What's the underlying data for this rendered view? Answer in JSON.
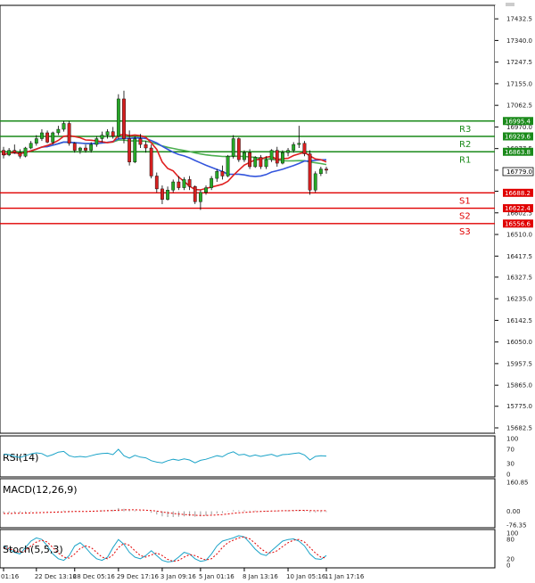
{
  "chart_data": {
    "type": "candlestick",
    "main": {
      "price_ticks": [
        "17432.5",
        "17340.0",
        "17247.5",
        "17155.0",
        "17062.5",
        "16970.0",
        "16877.5",
        "16785.0",
        "16695.0",
        "16602.5",
        "16510.0",
        "16417.5",
        "16327.5",
        "16235.0",
        "16142.5",
        "16050.0",
        "15957.5",
        "15865.0",
        "15775.0",
        "15682.5"
      ],
      "price_tick_values": [
        17432.5,
        17340.0,
        17247.5,
        17155.0,
        17062.5,
        16970.0,
        16877.5,
        16785.0,
        16695.0,
        16602.5,
        16510.0,
        16417.5,
        16327.5,
        16235.0,
        16142.5,
        16050.0,
        15957.5,
        15865.0,
        15775.0,
        15682.5
      ],
      "ylim": [
        15682.5,
        17475
      ],
      "current_price": "16779.0",
      "current_price_value": 16779.0,
      "levels": [
        {
          "name": "R3",
          "value": 16995.4,
          "label": "16995.4",
          "color": "#1a8a1a"
        },
        {
          "name": "R2",
          "value": 16929.6,
          "label": "16929.6",
          "color": "#1a8a1a"
        },
        {
          "name": "R1",
          "value": 16863.8,
          "label": "16863.8",
          "color": "#1a8a1a"
        },
        {
          "name": "S1",
          "value": 16688.2,
          "label": "16688.2",
          "color": "#e00000"
        },
        {
          "name": "S2",
          "value": 16622.4,
          "label": "16622.4",
          "color": "#e00000"
        },
        {
          "name": "S3",
          "value": 16556.6,
          "label": "16556.6",
          "color": "#e00000"
        }
      ],
      "candles": [
        [
          16870,
          16885,
          16835,
          16850
        ],
        [
          16850,
          16880,
          16845,
          16870
        ],
        [
          16870,
          16895,
          16855,
          16860
        ],
        [
          16860,
          16875,
          16835,
          16845
        ],
        [
          16845,
          16885,
          16840,
          16880
        ],
        [
          16880,
          16910,
          16875,
          16900
        ],
        [
          16900,
          16935,
          16890,
          16920
        ],
        [
          16920,
          16960,
          16910,
          16945
        ],
        [
          16945,
          16955,
          16900,
          16905
        ],
        [
          16905,
          16950,
          16895,
          16945
        ],
        [
          16945,
          16975,
          16935,
          16960
        ],
        [
          16960,
          16995,
          16950,
          16985
        ],
        [
          16985,
          16995,
          16890,
          16900
        ],
        [
          16900,
          16905,
          16860,
          16870
        ],
        [
          16870,
          16885,
          16855,
          16880
        ],
        [
          16880,
          16895,
          16860,
          16870
        ],
        [
          16870,
          16905,
          16860,
          16895
        ],
        [
          16895,
          16930,
          16885,
          16920
        ],
        [
          16920,
          16950,
          16905,
          16935
        ],
        [
          16935,
          16960,
          16920,
          16950
        ],
        [
          16950,
          16970,
          16920,
          16930
        ],
        [
          16930,
          17110,
          16920,
          17090
        ],
        [
          17090,
          17125,
          16900,
          16920
        ],
        [
          16920,
          16955,
          16805,
          16820
        ],
        [
          16820,
          16930,
          16815,
          16920
        ],
        [
          16920,
          16940,
          16880,
          16895
        ],
        [
          16895,
          16910,
          16860,
          16880
        ],
        [
          16880,
          16895,
          16750,
          16760
        ],
        [
          16760,
          16775,
          16690,
          16705
        ],
        [
          16705,
          16720,
          16640,
          16660
        ],
        [
          16660,
          16715,
          16655,
          16700
        ],
        [
          16700,
          16745,
          16690,
          16735
        ],
        [
          16735,
          16760,
          16700,
          16710
        ],
        [
          16710,
          16755,
          16700,
          16745
        ],
        [
          16745,
          16760,
          16700,
          16715
        ],
        [
          16715,
          16720,
          16640,
          16650
        ],
        [
          16650,
          16700,
          16615,
          16690
        ],
        [
          16690,
          16720,
          16680,
          16710
        ],
        [
          16710,
          16760,
          16700,
          16750
        ],
        [
          16750,
          16790,
          16735,
          16780
        ],
        [
          16780,
          16805,
          16745,
          16760
        ],
        [
          16760,
          16850,
          16755,
          16845
        ],
        [
          16845,
          16935,
          16835,
          16920
        ],
        [
          16920,
          16925,
          16820,
          16830
        ],
        [
          16830,
          16870,
          16820,
          16860
        ],
        [
          16860,
          16875,
          16790,
          16800
        ],
        [
          16800,
          16845,
          16795,
          16840
        ],
        [
          16840,
          16850,
          16790,
          16800
        ],
        [
          16800,
          16845,
          16790,
          16830
        ],
        [
          16830,
          16875,
          16820,
          16870
        ],
        [
          16870,
          16885,
          16800,
          16815
        ],
        [
          16815,
          16870,
          16810,
          16860
        ],
        [
          16860,
          16880,
          16845,
          16870
        ],
        [
          16870,
          16905,
          16860,
          16895
        ],
        [
          16895,
          16975,
          16880,
          16900
        ],
        [
          16900,
          16910,
          16845,
          16855
        ],
        [
          16855,
          16870,
          16680,
          16700
        ],
        [
          16700,
          16780,
          16690,
          16770
        ],
        [
          16770,
          16800,
          16760,
          16790
        ],
        [
          16790,
          16800,
          16770,
          16785
        ]
      ],
      "x_labels": [
        "01:16",
        "22 Dec 13:16",
        "28 Dec 05:16",
        "29 Dec 17:16",
        "3 Jan 09:16",
        "5 Jan 01:16",
        "8 Jan 13:16",
        "10 Jan 05:16",
        "11 Jan 17:16"
      ],
      "x_label_index": [
        0,
        6,
        13,
        21,
        29,
        36,
        44,
        52,
        59
      ]
    },
    "rsi": {
      "title": "RSI(14)",
      "ticks": [
        "100",
        "70",
        "30",
        "0"
      ],
      "tick_values": [
        100,
        70,
        30,
        0
      ],
      "values": [
        56,
        55,
        50,
        47,
        52,
        57,
        60,
        58,
        50,
        55,
        62,
        64,
        52,
        48,
        50,
        48,
        52,
        56,
        58,
        59,
        55,
        70,
        52,
        45,
        53,
        48,
        46,
        38,
        34,
        32,
        38,
        42,
        39,
        43,
        40,
        32,
        39,
        42,
        47,
        52,
        49,
        58,
        63,
        54,
        56,
        50,
        54,
        50,
        53,
        56,
        50,
        55,
        56,
        58,
        60,
        54,
        40,
        50,
        52,
        51
      ],
      "ylim": [
        0,
        100
      ]
    },
    "macd": {
      "title": "MACD(12,26,9)",
      "ticks": [
        "160.85",
        "0.00",
        "-76.35"
      ],
      "tick_values": [
        160.85,
        0,
        -76.35
      ],
      "ylim": [
        -76.35,
        160.85
      ],
      "histogram": [
        -10,
        -9,
        -8,
        -8,
        -6,
        -4,
        -2,
        -1,
        -1,
        0,
        2,
        4,
        3,
        2,
        1,
        0,
        1,
        3,
        5,
        7,
        8,
        18,
        14,
        6,
        5,
        2,
        0,
        -8,
        -18,
        -28,
        -32,
        -32,
        -30,
        -28,
        -27,
        -30,
        -28,
        -24,
        -18,
        -12,
        -9,
        -2,
        6,
        5,
        6,
        4,
        4,
        3,
        3,
        4,
        3,
        4,
        5,
        6,
        8,
        5,
        -6,
        -6,
        -5,
        -4
      ],
      "signal": [
        -12,
        -12,
        -11,
        -11,
        -10,
        -9,
        -8,
        -7,
        -6,
        -5,
        -4,
        -3,
        -2,
        -1,
        -1,
        -1,
        0,
        1,
        2,
        3,
        4,
        6,
        8,
        8,
        8,
        7,
        6,
        4,
        1,
        -4,
        -8,
        -12,
        -15,
        -18,
        -20,
        -22,
        -23,
        -23,
        -22,
        -20,
        -18,
        -15,
        -11,
        -8,
        -6,
        -4,
        -2,
        -1,
        0,
        1,
        2,
        3,
        3,
        4,
        5,
        5,
        4,
        3,
        3,
        3
      ]
    },
    "stoch": {
      "title": "Stoch(5,5,3)",
      "ticks": [
        "100",
        "80",
        "20",
        "0"
      ],
      "tick_values": [
        100,
        80,
        20,
        0
      ],
      "ylim": [
        0,
        100
      ],
      "k": [
        60,
        50,
        40,
        35,
        55,
        75,
        85,
        80,
        60,
        35,
        20,
        15,
        30,
        60,
        70,
        55,
        35,
        20,
        15,
        25,
        55,
        80,
        65,
        40,
        25,
        20,
        30,
        45,
        30,
        15,
        10,
        12,
        25,
        40,
        35,
        20,
        12,
        15,
        35,
        60,
        75,
        80,
        85,
        92,
        88,
        70,
        50,
        35,
        30,
        45,
        60,
        75,
        80,
        82,
        75,
        60,
        35,
        20,
        18,
        30
      ],
      "d": [
        55,
        52,
        45,
        40,
        45,
        60,
        72,
        78,
        72,
        55,
        38,
        25,
        22,
        35,
        52,
        60,
        55,
        40,
        25,
        20,
        32,
        55,
        68,
        62,
        45,
        30,
        25,
        32,
        38,
        30,
        18,
        12,
        15,
        25,
        33,
        30,
        22,
        16,
        20,
        35,
        55,
        70,
        78,
        85,
        88,
        82,
        68,
        52,
        40,
        38,
        45,
        58,
        70,
        78,
        80,
        72,
        55,
        38,
        25,
        22
      ]
    }
  }
}
